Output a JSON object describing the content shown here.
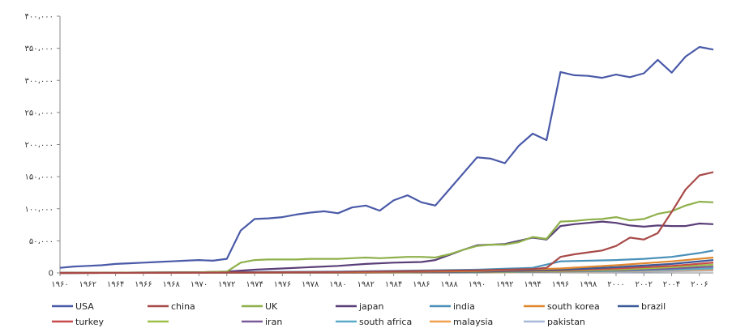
{
  "chart_data": {
    "type": "line",
    "title": "",
    "xlabel": "",
    "ylabel": "",
    "ylim": [
      0,
      400000
    ],
    "yticks": [
      0,
      50000,
      100000,
      150000,
      200000,
      250000,
      300000,
      350000,
      400000
    ],
    "ytick_labels": [
      "0",
      "۵۰،۰۰۰",
      "۱۰۰،۰۰۰",
      "۱۵۰،۰۰۰",
      "۲۰۰،۰۰۰",
      "۲۵۰،۰۰۰",
      "۳۰۰،۰۰۰",
      "۳۵۰،۰۰۰",
      "۴۰۰،۰۰۰"
    ],
    "xlim": [
      1960,
      2007
    ],
    "xticks": [
      1960,
      1962,
      1964,
      1966,
      1968,
      1970,
      1972,
      1974,
      1976,
      1978,
      1980,
      1982,
      1984,
      1986,
      1988,
      1990,
      1992,
      1994,
      1996,
      1998,
      2000,
      2002,
      2004,
      2006
    ],
    "xtick_labels": [
      "۱۹۶۰",
      "۱۹۶۲",
      "۱۹۶۴",
      "۱۹۶۶",
      "۱۹۶۸",
      "۱۹۷۰",
      "۱۹۷۲",
      "۱۹۷۴",
      "۱۹۷۶",
      "۱۹۷۸",
      "۱۹۸۰",
      "۱۹۸۲",
      "۱۹۸۴",
      "۱۹۸۶",
      "۱۹۸۸",
      "۱۹۹۰",
      "۱۹۹۲",
      "۱۹۹۴",
      "۱۹۹۶",
      "۱۹۹۸",
      "۲۰۰۰",
      "۲۰۰۲",
      "۲۰۰۴",
      "۲۰۰۶"
    ],
    "grid": false,
    "legend_position": "bottom",
    "series": [
      {
        "name": "USA",
        "color": "#4a5aa8",
        "x": [
          1960,
          1961,
          1962,
          1963,
          1964,
          1965,
          1966,
          1967,
          1968,
          1969,
          1970,
          1971,
          1972,
          1973,
          1974,
          1975,
          1976,
          1977,
          1978,
          1979,
          1980,
          1981,
          1982,
          1983,
          1984,
          1985,
          1986,
          1987,
          1988,
          1989,
          1990,
          1991,
          1992,
          1993,
          1994,
          1995,
          1996,
          1997,
          1998,
          1999,
          2000,
          2001,
          2002,
          2003,
          2004,
          2005,
          2006,
          2007
        ],
        "values": [
          8000,
          10000,
          11000,
          12000,
          14000,
          15000,
          16000,
          17000,
          18000,
          19000,
          20000,
          19000,
          22000,
          66000,
          84000,
          85000,
          87000,
          91000,
          94000,
          96000,
          93000,
          102000,
          105000,
          97000,
          113000,
          121000,
          110000,
          105000,
          130000,
          155000,
          180000,
          178000,
          171000,
          198000,
          217000,
          207000,
          313000,
          308000,
          307000,
          304000,
          309000,
          305000,
          311000,
          332000,
          312000,
          337000,
          352000,
          348000
        ]
      },
      {
        "name": "china",
        "color": "#a84a48",
        "x": [
          1960,
          1970,
          1980,
          1990,
          1994,
          1995,
          1996,
          1997,
          1998,
          1999,
          2000,
          2001,
          2002,
          2003,
          2004,
          2005,
          2006,
          2007
        ],
        "values": [
          0,
          500,
          1500,
          4000,
          6000,
          8000,
          25000,
          29000,
          32000,
          35000,
          42000,
          55000,
          52000,
          62000,
          95000,
          130000,
          152000,
          157000
        ]
      },
      {
        "name": "UK",
        "color": "#8eb04a",
        "x": [
          1960,
          1970,
          1972,
          1973,
          1974,
          1975,
          1976,
          1977,
          1978,
          1979,
          1980,
          1981,
          1982,
          1983,
          1984,
          1985,
          1986,
          1987,
          1988,
          1989,
          1990,
          1991,
          1992,
          1993,
          1994,
          1995,
          1996,
          1997,
          1998,
          1999,
          2000,
          2001,
          2002,
          2003,
          2004,
          2005,
          2006,
          2007
        ],
        "values": [
          0,
          1000,
          2000,
          16000,
          20000,
          21000,
          21000,
          21000,
          22000,
          22000,
          22000,
          23000,
          24000,
          23000,
          24000,
          25000,
          25000,
          24000,
          29000,
          36000,
          42000,
          44000,
          44000,
          48000,
          56000,
          53000,
          80000,
          81000,
          83000,
          84000,
          87000,
          82000,
          84000,
          92000,
          96000,
          105000,
          111000,
          110000
        ]
      },
      {
        "name": "japan",
        "color": "#5a3e78",
        "x": [
          1960,
          1970,
          1972,
          1974,
          1976,
          1978,
          1980,
          1982,
          1984,
          1986,
          1987,
          1988,
          1989,
          1990,
          1991,
          1992,
          1993,
          1994,
          1995,
          1996,
          1997,
          1998,
          1999,
          2000,
          2001,
          2002,
          2003,
          2004,
          2005,
          2006,
          2007
        ],
        "values": [
          0,
          1000,
          2000,
          5000,
          7000,
          9000,
          11000,
          14000,
          16000,
          17000,
          20000,
          28000,
          36000,
          43000,
          44000,
          45000,
          50000,
          55000,
          52000,
          73000,
          76000,
          78000,
          80000,
          78000,
          74000,
          72000,
          74000,
          73000,
          73000,
          77000,
          76000
        ]
      },
      {
        "name": "india",
        "color": "#4a90b8",
        "x": [
          1960,
          1980,
          1990,
          1994,
          1996,
          2000,
          2002,
          2004,
          2006,
          2007
        ],
        "values": [
          0,
          2000,
          5000,
          8000,
          18000,
          20000,
          22000,
          25000,
          31000,
          35000
        ]
      },
      {
        "name": "south korea",
        "color": "#e0872e",
        "x": [
          1960,
          1980,
          1990,
          1996,
          2000,
          2004,
          2007
        ],
        "values": [
          0,
          1000,
          3000,
          7000,
          12000,
          18000,
          24000
        ]
      },
      {
        "name": "brazil",
        "color": "#3a5a98",
        "x": [
          1960,
          1980,
          1990,
          1996,
          2000,
          2004,
          2007
        ],
        "values": [
          0,
          1000,
          2000,
          5000,
          9000,
          14000,
          20000
        ]
      },
      {
        "name": "turkey",
        "color": "#c84a4a",
        "x": [
          1960,
          1980,
          1990,
          1996,
          2000,
          2004,
          2007
        ],
        "values": [
          0,
          800,
          2000,
          4000,
          7000,
          11000,
          16000
        ]
      },
      {
        "name": "",
        "color": "#9cc04a",
        "x": [
          1960,
          1980,
          1990,
          1996,
          2000,
          2004,
          2007
        ],
        "values": [
          0,
          600,
          1500,
          3000,
          5000,
          9000,
          13000
        ]
      },
      {
        "name": "iran",
        "color": "#7a5a98",
        "x": [
          1960,
          1980,
          1990,
          1996,
          2000,
          2004,
          2007
        ],
        "values": [
          0,
          500,
          1200,
          2500,
          4000,
          7000,
          10000
        ]
      },
      {
        "name": "south africa",
        "color": "#5aaac8",
        "x": [
          1960,
          1980,
          1990,
          1996,
          2000,
          2004,
          2007
        ],
        "values": [
          0,
          400,
          1000,
          2000,
          3000,
          5000,
          7000
        ]
      },
      {
        "name": "malaysia",
        "color": "#f0a050",
        "x": [
          1960,
          1980,
          1990,
          1996,
          2000,
          2004,
          2007
        ],
        "values": [
          0,
          300,
          800,
          1500,
          2500,
          4000,
          5000
        ]
      },
      {
        "name": "pakistan",
        "color": "#a8b8d8",
        "x": [
          1960,
          1980,
          1990,
          1996,
          2000,
          2004,
          2007
        ],
        "values": [
          0,
          200,
          500,
          1000,
          1500,
          2500,
          3500
        ]
      }
    ]
  }
}
